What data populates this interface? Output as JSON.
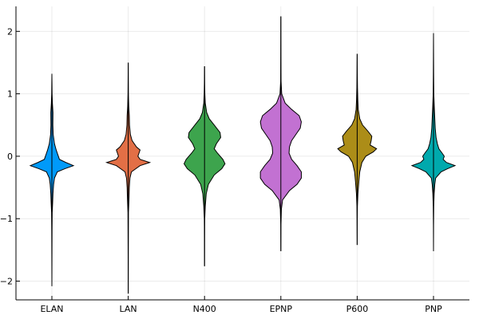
{
  "chart_data": {
    "type": "violin",
    "categories": [
      "ELAN",
      "LAN",
      "N400",
      "EPNP",
      "P600",
      "PNP"
    ],
    "ylim": [
      -2.3,
      2.4
    ],
    "yticks": [
      -2,
      -1,
      0,
      1,
      2
    ],
    "ytick_labels": [
      "−2",
      "−1",
      "0",
      "1",
      "2"
    ],
    "grid": true,
    "legend": "none",
    "series": [
      {
        "category": "ELAN",
        "color": "#009AFA",
        "min": -2.08,
        "max": 1.32,
        "density": [
          [
            -2.08,
            0.0
          ],
          [
            -1.6,
            0.004
          ],
          [
            -1.2,
            0.008
          ],
          [
            -0.9,
            0.015
          ],
          [
            -0.75,
            0.035
          ],
          [
            -0.6,
            0.05
          ],
          [
            -0.45,
            0.08
          ],
          [
            -0.35,
            0.12
          ],
          [
            -0.25,
            0.25
          ],
          [
            -0.2,
            0.6
          ],
          [
            -0.15,
            1.0
          ],
          [
            -0.1,
            0.65
          ],
          [
            -0.05,
            0.35
          ],
          [
            0.0,
            0.3
          ],
          [
            0.05,
            0.25
          ],
          [
            0.1,
            0.2
          ],
          [
            0.2,
            0.12
          ],
          [
            0.35,
            0.06
          ],
          [
            0.5,
            0.045
          ],
          [
            0.7,
            0.05
          ],
          [
            0.85,
            0.025
          ],
          [
            1.0,
            0.01
          ],
          [
            1.15,
            0.006
          ],
          [
            1.32,
            0.0
          ]
        ]
      },
      {
        "category": "LAN",
        "color": "#E26F46",
        "min": -2.2,
        "max": 1.5,
        "density": [
          [
            -2.2,
            0.0
          ],
          [
            -1.6,
            0.004
          ],
          [
            -1.2,
            0.008
          ],
          [
            -0.9,
            0.012
          ],
          [
            -0.7,
            0.035
          ],
          [
            -0.5,
            0.05
          ],
          [
            -0.35,
            0.08
          ],
          [
            -0.25,
            0.15
          ],
          [
            -0.15,
            0.55
          ],
          [
            -0.1,
            1.0
          ],
          [
            -0.05,
            0.55
          ],
          [
            0.0,
            0.45
          ],
          [
            0.05,
            0.5
          ],
          [
            0.1,
            0.55
          ],
          [
            0.15,
            0.38
          ],
          [
            0.25,
            0.18
          ],
          [
            0.35,
            0.1
          ],
          [
            0.5,
            0.06
          ],
          [
            0.65,
            0.05
          ],
          [
            0.8,
            0.025
          ],
          [
            1.0,
            0.01
          ],
          [
            1.2,
            0.006
          ],
          [
            1.5,
            0.0
          ]
        ]
      },
      {
        "category": "N400",
        "color": "#3DA44D",
        "min": -1.76,
        "max": 1.44,
        "density": [
          [
            -1.76,
            0.0
          ],
          [
            -1.3,
            0.004
          ],
          [
            -1.0,
            0.01
          ],
          [
            -0.8,
            0.035
          ],
          [
            -0.6,
            0.08
          ],
          [
            -0.45,
            0.18
          ],
          [
            -0.3,
            0.45
          ],
          [
            -0.2,
            0.8
          ],
          [
            -0.12,
            0.95
          ],
          [
            -0.05,
            0.85
          ],
          [
            0.05,
            0.6
          ],
          [
            0.12,
            0.45
          ],
          [
            0.2,
            0.55
          ],
          [
            0.3,
            0.75
          ],
          [
            0.38,
            0.72
          ],
          [
            0.5,
            0.45
          ],
          [
            0.6,
            0.22
          ],
          [
            0.7,
            0.1
          ],
          [
            0.85,
            0.035
          ],
          [
            1.0,
            0.015
          ],
          [
            1.2,
            0.006
          ],
          [
            1.44,
            0.0
          ]
        ]
      },
      {
        "category": "EPNP",
        "color": "#C271D2",
        "min": -1.52,
        "max": 2.24,
        "density": [
          [
            -1.52,
            0.0
          ],
          [
            -1.1,
            0.006
          ],
          [
            -0.85,
            0.025
          ],
          [
            -0.7,
            0.08
          ],
          [
            -0.55,
            0.4
          ],
          [
            -0.45,
            0.75
          ],
          [
            -0.35,
            0.95
          ],
          [
            -0.25,
            0.95
          ],
          [
            -0.15,
            0.75
          ],
          [
            -0.05,
            0.5
          ],
          [
            0.05,
            0.38
          ],
          [
            0.15,
            0.4
          ],
          [
            0.25,
            0.5
          ],
          [
            0.35,
            0.7
          ],
          [
            0.45,
            0.9
          ],
          [
            0.55,
            0.95
          ],
          [
            0.65,
            0.85
          ],
          [
            0.75,
            0.5
          ],
          [
            0.85,
            0.2
          ],
          [
            1.0,
            0.04
          ],
          [
            1.2,
            0.01
          ],
          [
            1.6,
            0.005
          ],
          [
            2.24,
            0.0
          ]
        ]
      },
      {
        "category": "P600",
        "color": "#AC8D18",
        "min": -1.42,
        "max": 1.64,
        "density": [
          [
            -1.42,
            0.0
          ],
          [
            -1.0,
            0.006
          ],
          [
            -0.8,
            0.012
          ],
          [
            -0.6,
            0.035
          ],
          [
            -0.4,
            0.08
          ],
          [
            -0.25,
            0.12
          ],
          [
            -0.1,
            0.22
          ],
          [
            0.0,
            0.4
          ],
          [
            0.07,
            0.75
          ],
          [
            0.12,
            0.9
          ],
          [
            0.18,
            0.6
          ],
          [
            0.25,
            0.65
          ],
          [
            0.32,
            0.68
          ],
          [
            0.4,
            0.5
          ],
          [
            0.5,
            0.25
          ],
          [
            0.6,
            0.12
          ],
          [
            0.75,
            0.05
          ],
          [
            0.9,
            0.03
          ],
          [
            1.1,
            0.015
          ],
          [
            1.3,
            0.008
          ],
          [
            1.64,
            0.0
          ]
        ]
      },
      {
        "category": "PNP",
        "color": "#00A9AD",
        "min": -1.52,
        "max": 1.97,
        "density": [
          [
            -1.52,
            0.0
          ],
          [
            -1.1,
            0.004
          ],
          [
            -0.8,
            0.012
          ],
          [
            -0.6,
            0.03
          ],
          [
            -0.45,
            0.06
          ],
          [
            -0.35,
            0.1
          ],
          [
            -0.25,
            0.35
          ],
          [
            -0.2,
            0.65
          ],
          [
            -0.15,
            1.0
          ],
          [
            -0.1,
            0.6
          ],
          [
            -0.05,
            0.45
          ],
          [
            0.0,
            0.5
          ],
          [
            0.05,
            0.4
          ],
          [
            0.12,
            0.25
          ],
          [
            0.2,
            0.18
          ],
          [
            0.3,
            0.12
          ],
          [
            0.45,
            0.08
          ],
          [
            0.6,
            0.06
          ],
          [
            0.8,
            0.035
          ],
          [
            1.0,
            0.015
          ],
          [
            1.3,
            0.008
          ],
          [
            1.6,
            0.004
          ],
          [
            1.97,
            0.0
          ]
        ]
      }
    ]
  }
}
